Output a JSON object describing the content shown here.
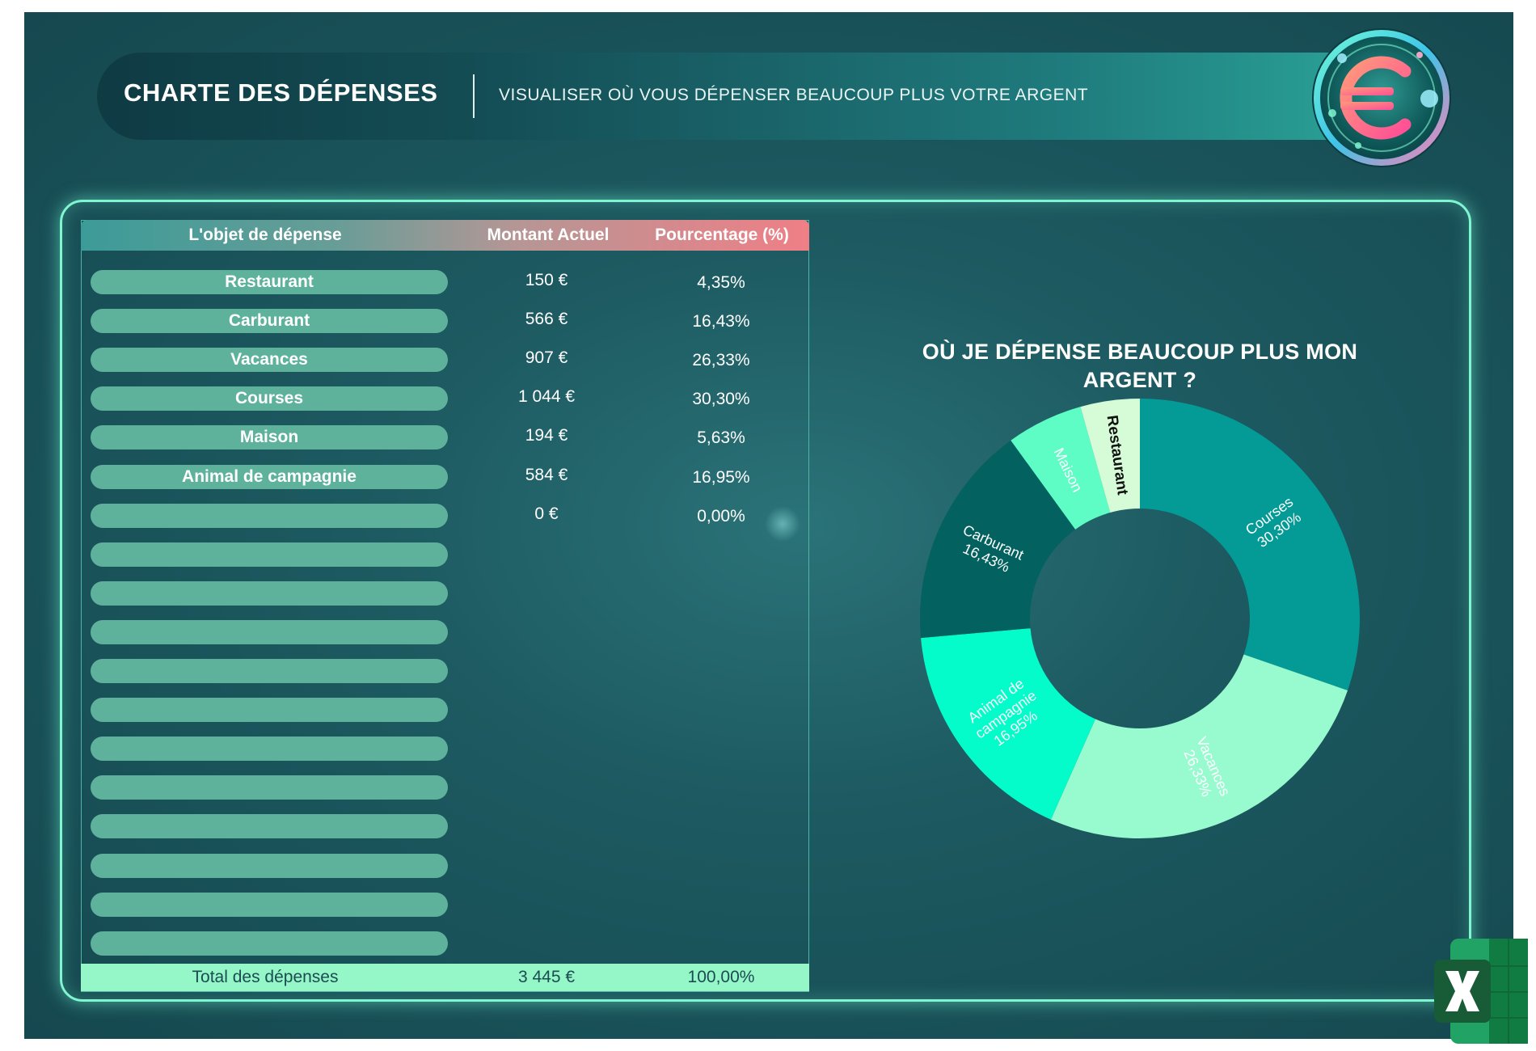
{
  "header": {
    "title": "CHARTE DES DÉPENSES",
    "subtitle": "VISUALISER OÙ VOUS DÉPENSER BEAUCOUP PLUS VOTRE ARGENT",
    "logo_icon": "euro-coin-icon"
  },
  "table": {
    "columns": [
      "L'objet de dépense",
      "Montant Actuel",
      "Pourcentage (%)"
    ],
    "rows": [
      {
        "category": "Restaurant",
        "amount": "150 €",
        "percent": "4,35%"
      },
      {
        "category": "Carburant",
        "amount": "566 €",
        "percent": "16,43%"
      },
      {
        "category": "Vacances",
        "amount": "907 €",
        "percent": "26,33%"
      },
      {
        "category": "Courses",
        "amount": "1 044 €",
        "percent": "30,30%"
      },
      {
        "category": "Maison",
        "amount": "194 €",
        "percent": "5,63%"
      },
      {
        "category": "Animal de campagnie",
        "amount": "584 €",
        "percent": "16,95%"
      },
      {
        "category": "",
        "amount": "0 €",
        "percent": "0,00%"
      },
      {
        "category": "",
        "amount": "",
        "percent": ""
      },
      {
        "category": "",
        "amount": "",
        "percent": ""
      },
      {
        "category": "",
        "amount": "",
        "percent": ""
      },
      {
        "category": "",
        "amount": "",
        "percent": ""
      },
      {
        "category": "",
        "amount": "",
        "percent": ""
      },
      {
        "category": "",
        "amount": "",
        "percent": ""
      },
      {
        "category": "",
        "amount": "",
        "percent": ""
      },
      {
        "category": "",
        "amount": "",
        "percent": ""
      },
      {
        "category": "",
        "amount": "",
        "percent": ""
      },
      {
        "category": "",
        "amount": "",
        "percent": ""
      },
      {
        "category": "",
        "amount": "",
        "percent": ""
      }
    ],
    "total": {
      "label": "Total des dépenses",
      "amount": "3 445 €",
      "percent": "100,00%"
    }
  },
  "chart_data": {
    "type": "pie",
    "variant": "donut",
    "title": "OÙ JE DÉPENSE BEAUCOUP PLUS MON ARGENT ?",
    "slices": [
      {
        "label": "Courses",
        "value": 1044,
        "percent_label": "30,30%",
        "color": "#049a96",
        "text_color": "#ffffff"
      },
      {
        "label": "Vacances",
        "value": 907,
        "percent_label": "26,33%",
        "color": "#98fbcf",
        "text_color": "#ffffff"
      },
      {
        "label": "Animal de campagnie",
        "value": 584,
        "percent_label": "16,95%",
        "color": "#04fccb",
        "text_color": "#ffffff"
      },
      {
        "label": "Carburant",
        "value": 566,
        "percent_label": "16,43%",
        "color": "#03615f",
        "text_color": "#ffffff"
      },
      {
        "label": "Maison",
        "value": 194,
        "percent_label": "",
        "color": "#5ffdc6",
        "text_color": "#ffffff"
      },
      {
        "label": "Restaurant",
        "value": 150,
        "percent_label": "",
        "color": "#d6fbd7",
        "text_color": "#111111"
      }
    ]
  },
  "icons": {
    "corner_app": "excel-icon"
  },
  "colors": {
    "background": "#1d5a61",
    "pill": "#5eb29c",
    "total_row": "#95f6c8",
    "panel_border": "#7ff5d0",
    "header_gradient_end": "#ef7f86"
  }
}
